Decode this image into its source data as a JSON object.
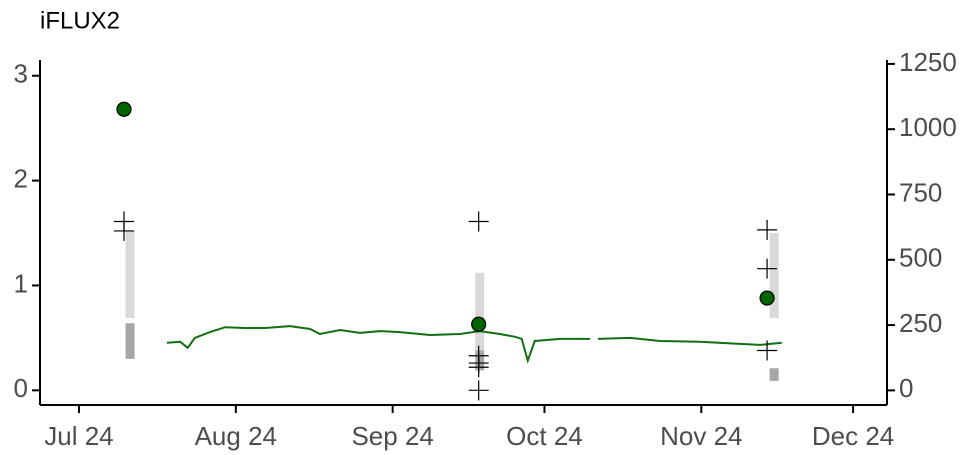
{
  "chart_data": {
    "type": "combo",
    "title": "iFLUX2",
    "xlim": [
      -7.7,
      159.7
    ],
    "xticks": [
      {
        "value": 0,
        "label": "Jul 24"
      },
      {
        "value": 31,
        "label": "Aug 24"
      },
      {
        "value": 62,
        "label": "Sep 24"
      },
      {
        "value": 92,
        "label": "Oct 24"
      },
      {
        "value": 123,
        "label": "Nov 24"
      },
      {
        "value": 153,
        "label": "Dec 24"
      }
    ],
    "ylim": [
      -0.14,
      3.15
    ],
    "yticks": [
      0,
      1,
      2,
      3
    ],
    "y2lim": [
      -56,
      1265
    ],
    "y2ticks": [
      0,
      250,
      500,
      750,
      1000,
      1250
    ],
    "ranges": {
      "x": [
        10.1,
        10.1,
        79.2,
        79.2,
        137.4,
        137.4
      ],
      "low": [
        0.69,
        0.3,
        0.38,
        0.19,
        0.69,
        0.09
      ],
      "high": [
        1.52,
        0.64,
        1.12,
        0.38,
        1.5,
        0.21
      ],
      "colors": [
        "#d9d9d9",
        "#a6a6a6",
        "#d9d9d9",
        "#a6a6a6",
        "#d9d9d9",
        "#a6a6a6"
      ]
    },
    "crosses": {
      "x": [
        8.9,
        8.9,
        79,
        79,
        79,
        79,
        79,
        136,
        136,
        136
      ],
      "values": [
        1.61,
        1.52,
        1.61,
        0.33,
        0.26,
        0.22,
        0,
        1.53,
        1.16,
        0.38
      ],
      "color": "#000000"
    },
    "points": {
      "x": [
        8.9,
        79,
        136
      ],
      "values": [
        2.68,
        0.63,
        0.88
      ],
      "color": "#006400"
    },
    "line": {
      "axis": "y2",
      "color": "#107010",
      "x": [
        17.4,
        20,
        21.5,
        22.9,
        25.9,
        28.9,
        32.8,
        36.8,
        41.7,
        45.7,
        47.6,
        51.6,
        55.5,
        59.5,
        63.4,
        69.4,
        75.3,
        79.2,
        83.2,
        86.2,
        87.5,
        88.7,
        90.1,
        95.1,
        101,
        101.8,
        102.6,
        108.9,
        114.8,
        122.7,
        130.6,
        134.6,
        138.9
      ],
      "values": [
        182,
        186,
        163,
        201,
        223,
        242,
        239,
        239,
        246,
        235,
        216,
        231,
        220,
        227,
        223,
        212,
        216,
        227,
        216,
        205,
        197,
        114,
        189,
        197,
        197,
        null,
        197,
        201,
        189,
        186,
        178,
        174,
        182
      ]
    }
  }
}
